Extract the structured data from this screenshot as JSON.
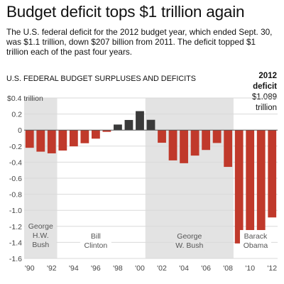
{
  "header": {
    "title": "Budget deficit tops $1 trillion again",
    "subtitle": "The U.S. federal deficit for the 2012 budget year, which ended Sept. 30, was $1.1 trillion, down $207 billion from 2011. The deficit topped $1 trillion each of the past four years."
  },
  "section": {
    "heading": "U.S. FEDERAL BUDGET SURPLUSES AND DEFICITS"
  },
  "callout": {
    "line1": "2012",
    "line2": "deficit",
    "line3": "$1.089",
    "line4": "trillion"
  },
  "chart_data": {
    "type": "bar",
    "unit": "trillion",
    "ylim": [
      -1.6,
      0.4
    ],
    "y_ticks": [
      0.4,
      0.2,
      0,
      -0.2,
      -0.4,
      -0.6,
      -0.8,
      -1.0,
      -1.2,
      -1.4,
      -1.6
    ],
    "y_tick_labels": [
      "$0.4 trillion",
      "0.2",
      "0",
      "-0.2",
      "-0.4",
      "-0.6",
      "-0.8",
      "-1.0",
      "-1.2",
      "-1.4",
      "-1.6"
    ],
    "categories": [
      1990,
      1991,
      1992,
      1993,
      1994,
      1995,
      1996,
      1997,
      1998,
      1999,
      2000,
      2001,
      2002,
      2003,
      2004,
      2005,
      2006,
      2007,
      2008,
      2009,
      2010,
      2011,
      2012
    ],
    "values": [
      -0.221,
      -0.269,
      -0.29,
      -0.255,
      -0.203,
      -0.164,
      -0.107,
      -0.022,
      0.069,
      0.126,
      0.236,
      0.128,
      -0.158,
      -0.378,
      -0.413,
      -0.318,
      -0.248,
      -0.161,
      -0.459,
      -1.413,
      -1.294,
      -1.296,
      -1.089
    ],
    "x_tick_labels": [
      "'90",
      "'92",
      "'94",
      "'96",
      "'98",
      "'00",
      "'02",
      "'04",
      "'06",
      "'08",
      "'10",
      "'12"
    ],
    "x_tick_years": [
      1990,
      1992,
      1994,
      1996,
      1998,
      2000,
      2002,
      2004,
      2006,
      2008,
      2010,
      2012
    ],
    "presidencies": [
      {
        "line1": "George",
        "line2": "H.W.",
        "line3": "Bush",
        "start": 1990,
        "end": 1992,
        "shaded": true
      },
      {
        "line1": "Bill",
        "line2": "Clinton",
        "line3": "",
        "start": 1993,
        "end": 2000,
        "shaded": false
      },
      {
        "line1": "George",
        "line2": "W. Bush",
        "line3": "",
        "start": 2001,
        "end": 2008,
        "shaded": true
      },
      {
        "line1": "Barack",
        "line2": "Obama",
        "line3": "",
        "start": 2009,
        "end": 2012,
        "shaded": false
      }
    ],
    "colors": {
      "deficit": "#c0392b",
      "surplus": "#3a3a3a",
      "shade": "#e3e3e3",
      "grid": "#dadada"
    }
  }
}
